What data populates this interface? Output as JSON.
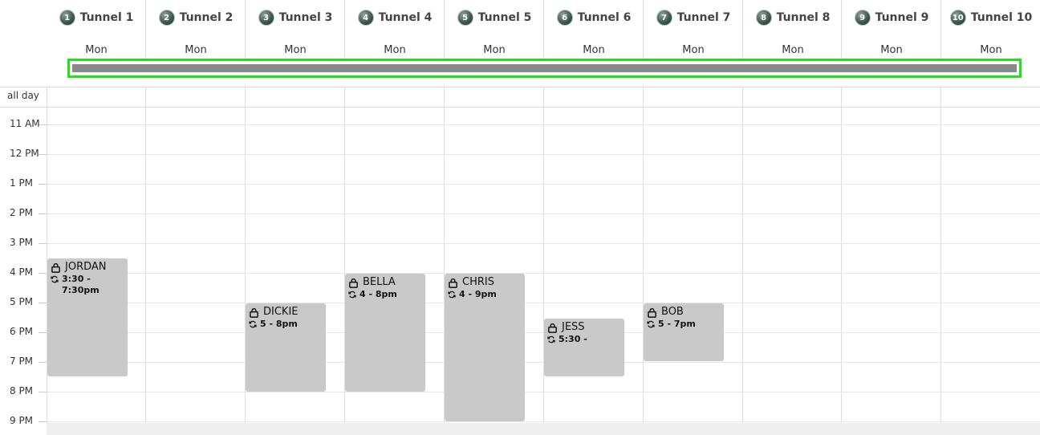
{
  "header": {
    "tunnels": [
      {
        "badge": "1",
        "name": "Tunnel 1",
        "day": "Mon"
      },
      {
        "badge": "2",
        "name": "Tunnel 2",
        "day": "Mon"
      },
      {
        "badge": "3",
        "name": "Tunnel 3",
        "day": "Mon"
      },
      {
        "badge": "4",
        "name": "Tunnel 4",
        "day": "Mon"
      },
      {
        "badge": "5",
        "name": "Tunnel 5",
        "day": "Mon"
      },
      {
        "badge": "6",
        "name": "Tunnel 6",
        "day": "Mon"
      },
      {
        "badge": "7",
        "name": "Tunnel 7",
        "day": "Mon"
      },
      {
        "badge": "8",
        "name": "Tunnel 8",
        "day": "Mon"
      },
      {
        "badge": "9",
        "name": "Tunnel 9",
        "day": "Mon"
      },
      {
        "badge": "10",
        "name": "Tunnel 10",
        "day": "Mon"
      }
    ]
  },
  "allday_label": "all day",
  "hours": [
    "11 AM",
    "12 PM",
    "1 PM",
    "2 PM",
    "3 PM",
    "4 PM",
    "5 PM",
    "6 PM",
    "7 PM",
    "8 PM",
    "9 PM"
  ],
  "events": [
    {
      "title": "JORDAN",
      "time": "3:30 - 7:30pm"
    },
    {
      "title": "DICKIE",
      "time": "5 - 8pm"
    },
    {
      "title": "BELLA",
      "time": "4 - 8pm"
    },
    {
      "title": "CHRIS",
      "time": "4 - 9pm"
    },
    {
      "title": "JESS",
      "time": "5:30 -"
    },
    {
      "title": "BOB",
      "time": "5 - 7pm"
    }
  ],
  "colors": {
    "highlight_border": "#22e01e",
    "event_bg": "#c9c9c9",
    "gridline": "#e6e6e6"
  }
}
